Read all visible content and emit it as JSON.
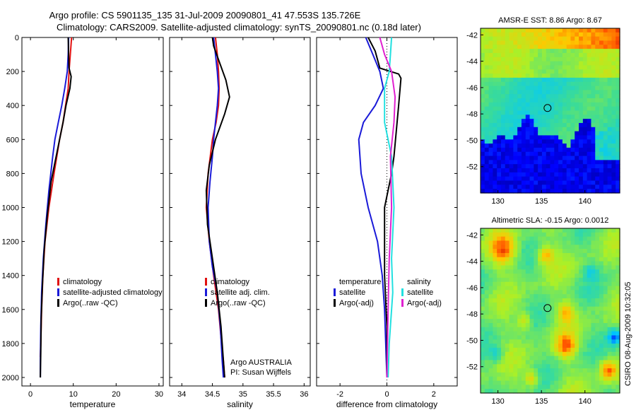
{
  "title_line1": "Argo profile: CS 5901135_135 31-Jul-2009 20090801_41 47.553S 135.726E",
  "title_line2": "Climatology: CARS2009. Satellite-adjusted climatology: synTS_20090801.nc (0.18d later)",
  "credit": "CSIRO 08-Aug-2009 10:32:05",
  "colors": {
    "climatology": "#e01010",
    "satellite": "#1a1ad8",
    "argo": "#000000",
    "sat_sal": "#22e0e0",
    "argo_sal": "#e020d0"
  },
  "chart_data": [
    {
      "type": "line",
      "id": "temperature",
      "xlabel": "temperature",
      "ylabel": "",
      "xlim": [
        -2,
        31
      ],
      "ylim": [
        2050,
        0
      ],
      "xticks": [
        0,
        10,
        20,
        30
      ],
      "yticks": [
        0,
        200,
        400,
        600,
        800,
        1000,
        1200,
        1400,
        1600,
        1800,
        2000
      ],
      "legend": [
        "climatology",
        "satellite-adjusted climatology",
        "Argo(..raw -QC)"
      ],
      "series": [
        {
          "name": "climatology",
          "color": "#e01010",
          "x": [
            9.6,
            9.3,
            9.0,
            8.8,
            8.2,
            7.6,
            6.8,
            5.5,
            4.3,
            3.4,
            2.9,
            2.6,
            2.4,
            2.3
          ],
          "y": [
            0,
            100,
            200,
            300,
            400,
            500,
            600,
            800,
            1000,
            1200,
            1400,
            1600,
            1800,
            1880
          ]
        },
        {
          "name": "satellite",
          "color": "#1a1ad8",
          "x": [
            8.9,
            8.8,
            8.6,
            8.0,
            7.3,
            6.5,
            5.7,
            5.2,
            4.3,
            3.6,
            3.0,
            2.6,
            2.4,
            2.3,
            2.3
          ],
          "y": [
            0,
            100,
            200,
            300,
            400,
            500,
            600,
            700,
            900,
            1100,
            1300,
            1500,
            1700,
            1900,
            2000
          ]
        },
        {
          "name": "Argo",
          "color": "#000000",
          "x": [
            8.8,
            8.9,
            9.0,
            9.3,
            9.5,
            9.2,
            8.3,
            7.6,
            6.4,
            4.8,
            3.9,
            3.2,
            2.8,
            2.5,
            2.4,
            2.3
          ],
          "y": [
            0,
            100,
            180,
            210,
            230,
            300,
            400,
            500,
            650,
            850,
            1050,
            1250,
            1450,
            1650,
            1850,
            2000
          ]
        }
      ]
    },
    {
      "type": "line",
      "id": "salinity",
      "xlabel": "salinity",
      "ylabel": "",
      "xlim": [
        33.8,
        36.1
      ],
      "ylim": [
        2050,
        0
      ],
      "xticks": [
        34,
        34.5,
        35,
        35.5,
        36
      ],
      "xticklabels": [
        "34",
        "34.5",
        "35",
        "35.5",
        "36"
      ],
      "legend": [
        "climatology",
        "satellite adj. clim.",
        "Argo(..raw -QC)"
      ],
      "annotation": [
        "Argo AUSTRALIA",
        "PI: Susan Wijffels"
      ],
      "series": [
        {
          "name": "climatology",
          "color": "#e01010",
          "x": [
            34.55,
            34.58,
            34.6,
            34.61,
            34.6,
            34.56,
            34.5,
            34.43,
            34.4,
            34.45,
            34.52,
            34.6,
            34.65,
            34.68,
            34.7
          ],
          "y": [
            0,
            100,
            200,
            300,
            400,
            500,
            600,
            800,
            1000,
            1200,
            1400,
            1600,
            1800,
            1900,
            2000
          ]
        },
        {
          "name": "satellite",
          "color": "#1a1ad8",
          "x": [
            34.52,
            34.55,
            34.58,
            34.6,
            34.58,
            34.55,
            34.52,
            34.5,
            34.46,
            34.43,
            34.45,
            34.5,
            34.58,
            34.63,
            34.66,
            34.68
          ],
          "y": [
            0,
            100,
            200,
            300,
            400,
            500,
            600,
            700,
            850,
            1000,
            1200,
            1350,
            1500,
            1700,
            1900,
            2000
          ]
        },
        {
          "name": "Argo",
          "color": "#000000",
          "x": [
            34.5,
            34.52,
            34.62,
            34.72,
            34.78,
            34.7,
            34.55,
            34.45,
            34.4,
            34.42,
            34.5,
            34.58,
            34.64,
            34.68,
            34.7
          ],
          "y": [
            0,
            50,
            150,
            250,
            350,
            450,
            600,
            750,
            900,
            1100,
            1300,
            1500,
            1700,
            1900,
            2000
          ]
        }
      ]
    },
    {
      "type": "line",
      "id": "difference",
      "xlabel": "difference from climatology",
      "ylabel": "",
      "xlim": [
        -3,
        3
      ],
      "ylim": [
        2050,
        0
      ],
      "xticks": [
        -2,
        0,
        2
      ],
      "legend_left": [
        "temperature",
        "satellite",
        "Argo(-adj)"
      ],
      "legend_right": [
        "salinity",
        "satellite",
        "Argo(-adj)"
      ],
      "series": [
        {
          "name": "temp-satellite",
          "color": "#1a1ad8",
          "x": [
            -0.9,
            -0.6,
            -0.3,
            -0.15,
            -0.5,
            -1.0,
            -1.2,
            -1.1,
            -0.8,
            -0.4,
            -0.2,
            -0.1,
            0.0
          ],
          "y": [
            0,
            100,
            200,
            300,
            400,
            500,
            600,
            800,
            1000,
            1200,
            1400,
            1600,
            2000
          ]
        },
        {
          "name": "temp-Argo",
          "color": "#000000",
          "x": [
            -0.8,
            -0.5,
            -0.3,
            0.5,
            0.6,
            0.5,
            0.4,
            0.3,
            0.2,
            -0.1,
            -0.1,
            0.0,
            0.0
          ],
          "y": [
            0,
            80,
            180,
            215,
            240,
            400,
            550,
            700,
            800,
            1000,
            1400,
            1700,
            2000
          ]
        },
        {
          "name": "sal-satellite",
          "color": "#22e0e0",
          "x": [
            0.2,
            0.15,
            0.1,
            -0.1,
            -0.1,
            0.2,
            0.3,
            0.2,
            0.25,
            0.1,
            0.05
          ],
          "y": [
            0,
            100,
            200,
            300,
            500,
            700,
            1000,
            1300,
            1500,
            1800,
            2000
          ]
        },
        {
          "name": "sal-Argo",
          "color": "#e020d0",
          "x": [
            -0.3,
            -0.1,
            0.2,
            0.35,
            0.3,
            0.15,
            0.2,
            0.1,
            0.05,
            0.0
          ],
          "y": [
            0,
            100,
            200,
            350,
            500,
            700,
            1000,
            1300,
            1600,
            2000
          ]
        }
      ]
    },
    {
      "type": "heatmap",
      "id": "sst",
      "title": "AMSR-E SST: 8.86 Argo: 8.67",
      "xlim": [
        128,
        144
      ],
      "ylim": [
        -54,
        -41.5
      ],
      "xticks": [
        130,
        135,
        140
      ],
      "yticks": [
        -42,
        -44,
        -46,
        -48,
        -50,
        -52
      ],
      "marker": {
        "lon": 135.7,
        "lat": -47.55
      }
    },
    {
      "type": "heatmap",
      "id": "sla",
      "title": "Altimetric SLA: -0.15 Argo: 0.0012",
      "xlim": [
        128,
        144
      ],
      "ylim": [
        -54,
        -41.5
      ],
      "xticks": [
        130,
        135,
        140
      ],
      "yticks": [
        -42,
        -44,
        -46,
        -48,
        -50,
        -52
      ],
      "marker": {
        "lon": 135.7,
        "lat": -47.55
      }
    }
  ]
}
